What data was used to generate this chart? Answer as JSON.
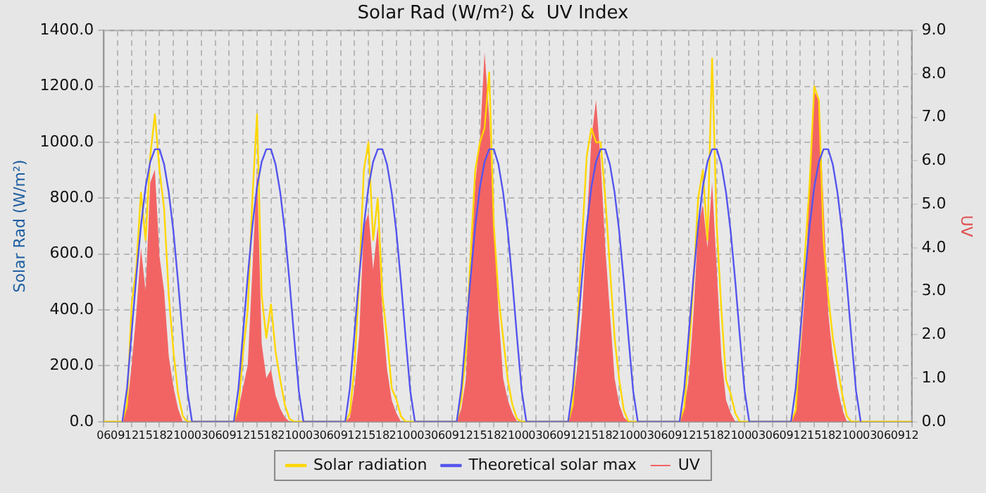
{
  "chart_data": {
    "type": "line",
    "title": "Solar Rad (W/m²) &  UV Index",
    "ylabel": "Solar Rad (W/m²)",
    "y2label": "UV",
    "x": [
      6,
      10,
      11,
      12,
      13,
      14,
      15,
      16,
      17,
      18,
      19,
      20,
      21,
      22,
      23,
      24,
      25,
      34,
      35,
      36,
      37,
      38,
      39,
      40,
      41,
      42,
      43,
      44,
      45,
      46,
      47,
      48,
      49,
      58,
      59,
      60,
      61,
      62,
      63,
      64,
      65,
      66,
      67,
      68,
      69,
      70,
      71,
      72,
      73,
      82,
      83,
      84,
      85,
      86,
      87,
      88,
      89,
      90,
      91,
      92,
      93,
      94,
      95,
      96,
      97,
      106,
      107,
      108,
      109,
      110,
      111,
      112,
      113,
      114,
      115,
      116,
      117,
      118,
      119,
      120,
      121,
      130,
      131,
      132,
      133,
      134,
      135,
      136,
      137,
      138,
      139,
      140,
      141,
      142,
      143,
      144,
      145,
      154,
      155,
      156,
      157,
      158,
      159,
      160,
      161,
      162,
      163,
      164,
      165,
      166,
      167,
      168,
      169,
      180
    ],
    "xlim": [
      6,
      180
    ],
    "xticks": [
      {
        "value": 6,
        "label": "06"
      },
      {
        "value": 9,
        "label": "09"
      },
      {
        "value": 12,
        "label": "12"
      },
      {
        "value": 15,
        "label": "15"
      },
      {
        "value": 18,
        "label": "18"
      },
      {
        "value": 21,
        "label": "21"
      },
      {
        "value": 24,
        "label": "00"
      },
      {
        "value": 27,
        "label": "03"
      },
      {
        "value": 30,
        "label": "06"
      },
      {
        "value": 33,
        "label": "09"
      },
      {
        "value": 36,
        "label": "12"
      },
      {
        "value": 39,
        "label": "15"
      },
      {
        "value": 42,
        "label": "18"
      },
      {
        "value": 45,
        "label": "21"
      },
      {
        "value": 48,
        "label": "00"
      },
      {
        "value": 51,
        "label": "03"
      },
      {
        "value": 54,
        "label": "06"
      },
      {
        "value": 57,
        "label": "09"
      },
      {
        "value": 60,
        "label": "12"
      },
      {
        "value": 63,
        "label": "15"
      },
      {
        "value": 66,
        "label": "18"
      },
      {
        "value": 69,
        "label": "21"
      },
      {
        "value": 72,
        "label": "00"
      },
      {
        "value": 75,
        "label": "03"
      },
      {
        "value": 78,
        "label": "06"
      },
      {
        "value": 81,
        "label": "09"
      },
      {
        "value": 84,
        "label": "12"
      },
      {
        "value": 87,
        "label": "15"
      },
      {
        "value": 90,
        "label": "18"
      },
      {
        "value": 93,
        "label": "21"
      },
      {
        "value": 96,
        "label": "00"
      },
      {
        "value": 99,
        "label": "03"
      },
      {
        "value": 102,
        "label": "06"
      },
      {
        "value": 105,
        "label": "09"
      },
      {
        "value": 108,
        "label": "12"
      },
      {
        "value": 111,
        "label": "15"
      },
      {
        "value": 114,
        "label": "18"
      },
      {
        "value": 117,
        "label": "21"
      },
      {
        "value": 120,
        "label": "00"
      },
      {
        "value": 123,
        "label": "03"
      },
      {
        "value": 126,
        "label": "06"
      },
      {
        "value": 129,
        "label": "09"
      },
      {
        "value": 132,
        "label": "12"
      },
      {
        "value": 135,
        "label": "15"
      },
      {
        "value": 138,
        "label": "18"
      },
      {
        "value": 141,
        "label": "21"
      },
      {
        "value": 144,
        "label": "00"
      },
      {
        "value": 147,
        "label": "03"
      },
      {
        "value": 150,
        "label": "06"
      },
      {
        "value": 153,
        "label": "09"
      },
      {
        "value": 156,
        "label": "12"
      },
      {
        "value": 159,
        "label": "15"
      },
      {
        "value": 162,
        "label": "18"
      },
      {
        "value": 165,
        "label": "21"
      },
      {
        "value": 168,
        "label": "00"
      },
      {
        "value": 171,
        "label": "03"
      },
      {
        "value": 174,
        "label": "06"
      },
      {
        "value": 177,
        "label": "09"
      },
      {
        "value": 180,
        "label": "12"
      }
    ],
    "ylim": [
      0,
      1400
    ],
    "yticks": [
      {
        "value": 0,
        "label": "0.0"
      },
      {
        "value": 200,
        "label": "200.0"
      },
      {
        "value": 400,
        "label": "400.0"
      },
      {
        "value": 600,
        "label": "600.0"
      },
      {
        "value": 800,
        "label": "800.0"
      },
      {
        "value": 1000,
        "label": "1000.0"
      },
      {
        "value": 1200,
        "label": "1200.0"
      },
      {
        "value": 1400,
        "label": "1400.0"
      }
    ],
    "y2lim": [
      0,
      9
    ],
    "y2ticks": [
      {
        "value": 0,
        "label": "0.0"
      },
      {
        "value": 1,
        "label": "1.0"
      },
      {
        "value": 2,
        "label": "2.0"
      },
      {
        "value": 3,
        "label": "3.0"
      },
      {
        "value": 4,
        "label": "4.0"
      },
      {
        "value": 5,
        "label": "5.0"
      },
      {
        "value": 6,
        "label": "6.0"
      },
      {
        "value": 7,
        "label": "7.0"
      },
      {
        "value": 8,
        "label": "8.0"
      },
      {
        "value": 9,
        "label": "9.0"
      }
    ],
    "grid": true,
    "legend": "bottom",
    "marker": "none",
    "series": [
      {
        "name": "Solar radiation",
        "type": "line",
        "color": "#ffd700",
        "values": [
          0,
          0,
          60,
          420,
          550,
          820,
          650,
          950,
          1100,
          900,
          760,
          450,
          250,
          100,
          20,
          0,
          0,
          0,
          50,
          250,
          400,
          800,
          1100,
          450,
          300,
          420,
          250,
          150,
          60,
          10,
          0,
          0,
          0,
          0,
          30,
          200,
          500,
          900,
          1000,
          650,
          800,
          450,
          300,
          120,
          80,
          20,
          0,
          0,
          0,
          0,
          80,
          250,
          600,
          900,
          1000,
          1050,
          1250,
          700,
          450,
          300,
          150,
          60,
          10,
          0,
          0,
          0,
          60,
          350,
          650,
          950,
          1050,
          1000,
          1000,
          800,
          550,
          300,
          150,
          40,
          0,
          0,
          0,
          0,
          50,
          250,
          500,
          800,
          900,
          650,
          1300,
          700,
          400,
          150,
          100,
          30,
          0,
          0,
          0,
          0,
          40,
          300,
          600,
          850,
          1200,
          1150,
          650,
          450,
          300,
          200,
          100,
          20,
          0,
          0,
          0,
          0
        ]
      },
      {
        "name": "Theoretical solar max",
        "type": "line",
        "color": "#5555ee",
        "values": [
          null,
          0,
          120,
          320,
          520,
          700,
          840,
          930,
          975,
          975,
          920,
          820,
          680,
          500,
          300,
          110,
          0,
          0,
          120,
          320,
          520,
          700,
          840,
          930,
          975,
          975,
          920,
          820,
          680,
          500,
          300,
          110,
          0,
          0,
          120,
          320,
          520,
          700,
          840,
          930,
          975,
          975,
          920,
          820,
          680,
          500,
          300,
          110,
          0,
          0,
          120,
          320,
          520,
          700,
          840,
          930,
          975,
          975,
          920,
          820,
          680,
          500,
          300,
          110,
          0,
          0,
          120,
          320,
          520,
          700,
          840,
          930,
          975,
          975,
          920,
          820,
          680,
          500,
          300,
          110,
          0,
          0,
          120,
          320,
          520,
          700,
          840,
          930,
          975,
          975,
          920,
          820,
          680,
          500,
          300,
          110,
          0,
          0,
          120,
          320,
          520,
          700,
          840,
          930,
          975,
          975,
          920,
          820,
          680,
          500,
          300,
          110,
          0,
          null
        ]
      },
      {
        "name": "UV",
        "type": "area",
        "axis": "y2",
        "color": "#f26464",
        "values": [
          0,
          0,
          0.3,
          1.3,
          2.5,
          4,
          3,
          5.5,
          5.8,
          3.8,
          3,
          1.5,
          0.8,
          0.3,
          0,
          0,
          0,
          0,
          0.3,
          0.8,
          1.3,
          3.5,
          5.8,
          1.8,
          1,
          1.2,
          0.6,
          0.3,
          0.1,
          0,
          0,
          0,
          0,
          0,
          0.1,
          0.8,
          2,
          4.5,
          4.8,
          3.5,
          4.5,
          2.5,
          1.2,
          0.5,
          0.2,
          0,
          0,
          0,
          0,
          0,
          0.3,
          1,
          3.5,
          5.5,
          6.5,
          8.5,
          7,
          4.5,
          2.5,
          1,
          0.5,
          0.2,
          0,
          0,
          0,
          0,
          0.4,
          1.3,
          2.5,
          4.5,
          6.5,
          7.4,
          6,
          4,
          2.5,
          1,
          0.4,
          0.1,
          0,
          0,
          0,
          0,
          0.3,
          1,
          2.5,
          4.5,
          5,
          4,
          5.5,
          3.5,
          1.5,
          0.5,
          0.2,
          0,
          0,
          0,
          0,
          0,
          0.3,
          1.5,
          3,
          5.5,
          7.6,
          7.4,
          5,
          2.5,
          1.5,
          0.8,
          0.3,
          0,
          0,
          0,
          0,
          0
        ]
      }
    ]
  }
}
